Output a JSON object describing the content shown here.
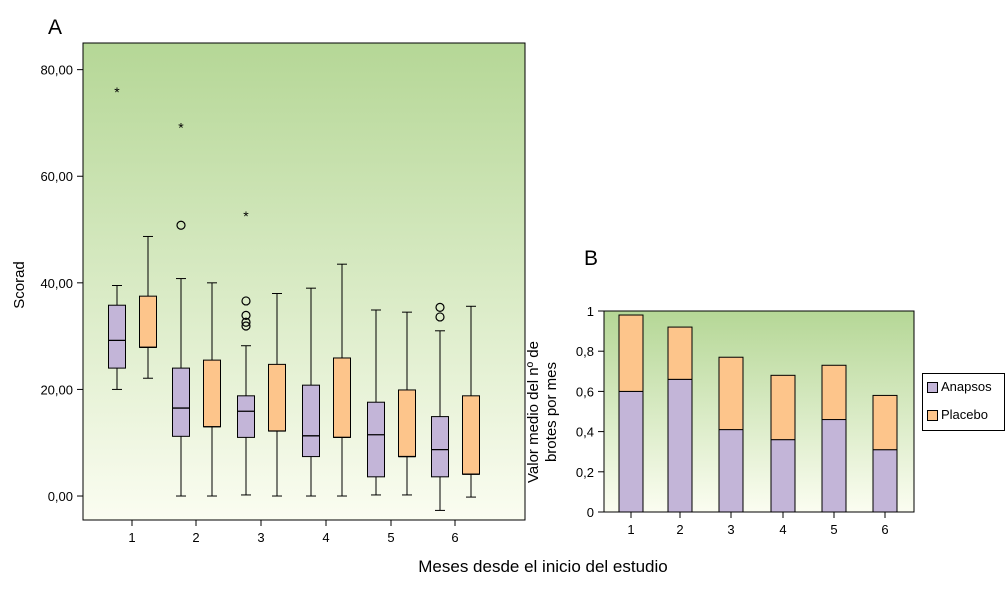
{
  "panel_a_letter": "A",
  "panel_b_letter": "B",
  "shared_xlabel": "Meses desde el inicio del estudio",
  "colors": {
    "anapsos": "#c3b5d8",
    "placebo": "#fdc58b",
    "bg_top": "#b5d796",
    "bg_bottom": "#fbfdf1"
  },
  "chart_data": [
    {
      "type": "box",
      "ylabel": "Scorad",
      "categories": [
        "1",
        "2",
        "3",
        "4",
        "5",
        "6"
      ],
      "ylim": [
        -4.5,
        85
      ],
      "yticks": [
        0,
        20,
        40,
        60,
        80
      ],
      "ytick_labels": [
        "0,00",
        "20,00",
        "40,00",
        "60,00",
        "80,00"
      ],
      "grid": false,
      "series": [
        {
          "name": "Anapsos",
          "boxes": [
            {
              "min": 20.0,
              "q1": 24.0,
              "median": 29.2,
              "q3": 35.8,
              "max": 39.5,
              "outliers": [],
              "extremes": [
                76.0
              ]
            },
            {
              "min": 0.0,
              "q1": 11.2,
              "median": 16.5,
              "q3": 24.0,
              "max": 40.8,
              "outliers": [
                50.8
              ],
              "extremes": [
                69.3
              ]
            },
            {
              "min": 0.2,
              "q1": 11.0,
              "median": 15.9,
              "q3": 18.8,
              "max": 28.2,
              "outliers": [
                36.6,
                33.9,
                32.6,
                31.9
              ],
              "extremes": [
                52.7
              ]
            },
            {
              "min": 0.0,
              "q1": 7.4,
              "median": 11.3,
              "q3": 20.8,
              "max": 39.0,
              "outliers": [],
              "extremes": []
            },
            {
              "min": 0.2,
              "q1": 3.6,
              "median": 11.5,
              "q3": 17.6,
              "max": 34.9,
              "outliers": [],
              "extremes": []
            },
            {
              "min": -2.7,
              "q1": 3.6,
              "median": 8.7,
              "q3": 14.9,
              "max": 31.0,
              "outliers": [
                35.4,
                33.6
              ],
              "extremes": []
            }
          ]
        },
        {
          "name": "Placebo",
          "boxes": [
            {
              "min": 22.1,
              "q1": 27.9,
              "median": 27.9,
              "q3": 37.5,
              "max": 48.7,
              "outliers": [],
              "extremes": []
            },
            {
              "min": 0.0,
              "q1": 13.0,
              "median": 13.0,
              "q3": 25.5,
              "max": 40.0,
              "outliers": [],
              "extremes": []
            },
            {
              "min": 0.0,
              "q1": 12.2,
              "median": 12.2,
              "q3": 24.7,
              "max": 38.0,
              "outliers": [],
              "extremes": []
            },
            {
              "min": 0.0,
              "q1": 11.0,
              "median": 11.0,
              "q3": 25.9,
              "max": 43.5,
              "outliers": [],
              "extremes": []
            },
            {
              "min": 0.2,
              "q1": 7.4,
              "median": 7.4,
              "q3": 19.9,
              "max": 34.5,
              "outliers": [],
              "extremes": []
            },
            {
              "min": -0.2,
              "q1": 4.1,
              "median": 4.1,
              "q3": 18.8,
              "max": 35.6,
              "outliers": [],
              "extremes": []
            }
          ]
        }
      ]
    },
    {
      "type": "bar",
      "stacked": true,
      "ylabel_lines": [
        "Valor medio del nº de",
        "brotes por mes"
      ],
      "categories": [
        "1",
        "2",
        "3",
        "4",
        "5",
        "6"
      ],
      "ylim": [
        0,
        1
      ],
      "yticks": [
        0,
        0.2,
        0.4,
        0.6,
        0.8,
        1
      ],
      "ytick_labels": [
        "0",
        "0,2",
        "0,4",
        "0,6",
        "0,8",
        "1"
      ],
      "grid": false,
      "legend": "right",
      "series": [
        {
          "name": "Anapsos",
          "values": [
            0.6,
            0.66,
            0.41,
            0.36,
            0.46,
            0.31
          ]
        },
        {
          "name": "Placebo",
          "values": [
            0.38,
            0.26,
            0.36,
            0.32,
            0.27,
            0.27
          ]
        }
      ]
    }
  ]
}
